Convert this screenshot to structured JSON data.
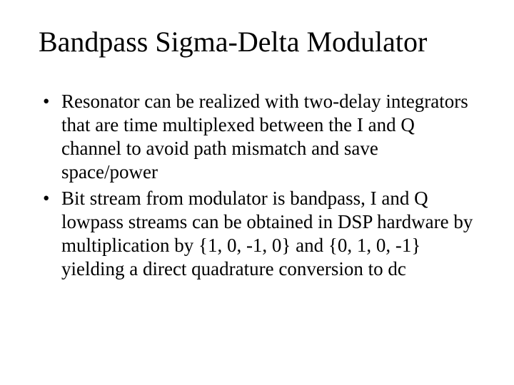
{
  "slide": {
    "background_color": "#ffffff",
    "text_color": "#000000",
    "font_family": "Times New Roman",
    "title": {
      "text": "Bandpass Sigma-Delta Modulator",
      "fontsize": 40,
      "weight": "normal"
    },
    "bullets": {
      "fontsize": 27,
      "items": [
        "Resonator can be realized with two-delay integrators that are time multiplexed between the I and Q channel to avoid path mismatch and save space/power",
        " Bit stream from modulator is bandpass, I and Q lowpass streams can be obtained in DSP hardware by multiplication by {1, 0, -1, 0} and {0, 1, 0, -1} yielding a direct quadrature conversion to dc"
      ]
    }
  }
}
